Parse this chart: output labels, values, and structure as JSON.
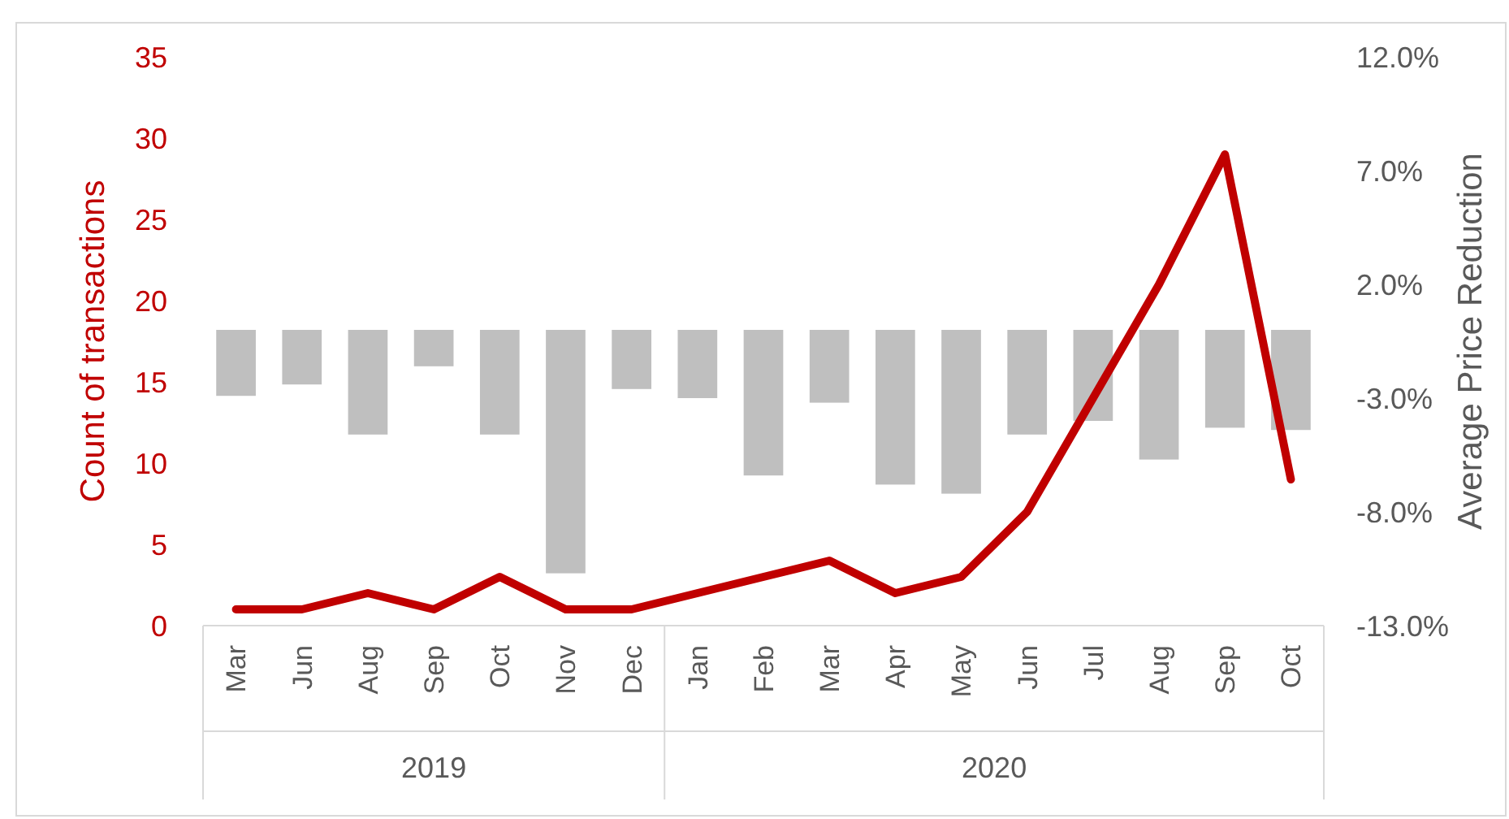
{
  "chart_data": {
    "type": "bar",
    "categories": [
      "Mar",
      "Jun",
      "Aug",
      "Sep",
      "Oct",
      "Nov",
      "Dec",
      "Jan",
      "Feb",
      "Mar",
      "Apr",
      "May",
      "Jun",
      "Jul",
      "Aug",
      "Sep",
      "Oct"
    ],
    "annotations": [
      "2019",
      "2020"
    ],
    "ylabel": "Count of transactions",
    "y2label": "Average Price Reduction",
    "ylim": [
      0,
      35
    ],
    "yticks": [
      0,
      5,
      10,
      15,
      20,
      25,
      30,
      35
    ],
    "y2lim": [
      -13,
      12
    ],
    "y2ticks": [
      {
        "value": -13,
        "label": "-13.0%"
      },
      {
        "value": -8,
        "label": "-8.0%"
      },
      {
        "value": -3,
        "label": "-3.0%"
      },
      {
        "value": 2,
        "label": "2.0%"
      },
      {
        "value": 7,
        "label": "7.0%"
      },
      {
        "value": 12,
        "label": "12.0%"
      }
    ],
    "grid": false,
    "series": [
      {
        "axis": "y2",
        "color": "#bfbfbf",
        "values": [
          -2.9,
          -2.4,
          -4.6,
          -1.6,
          -4.6,
          -10.7,
          -2.6,
          -3.0,
          -6.4,
          -3.2,
          -6.8,
          -7.2,
          -4.6,
          -4.0,
          -5.7,
          -4.3,
          -4.4
        ]
      },
      {
        "type": "line",
        "axis": "y",
        "color": "#c00000",
        "values": [
          1,
          1,
          2,
          1,
          3,
          1,
          1,
          2,
          3,
          4,
          2,
          3,
          7,
          14,
          21,
          29,
          9
        ]
      }
    ]
  }
}
